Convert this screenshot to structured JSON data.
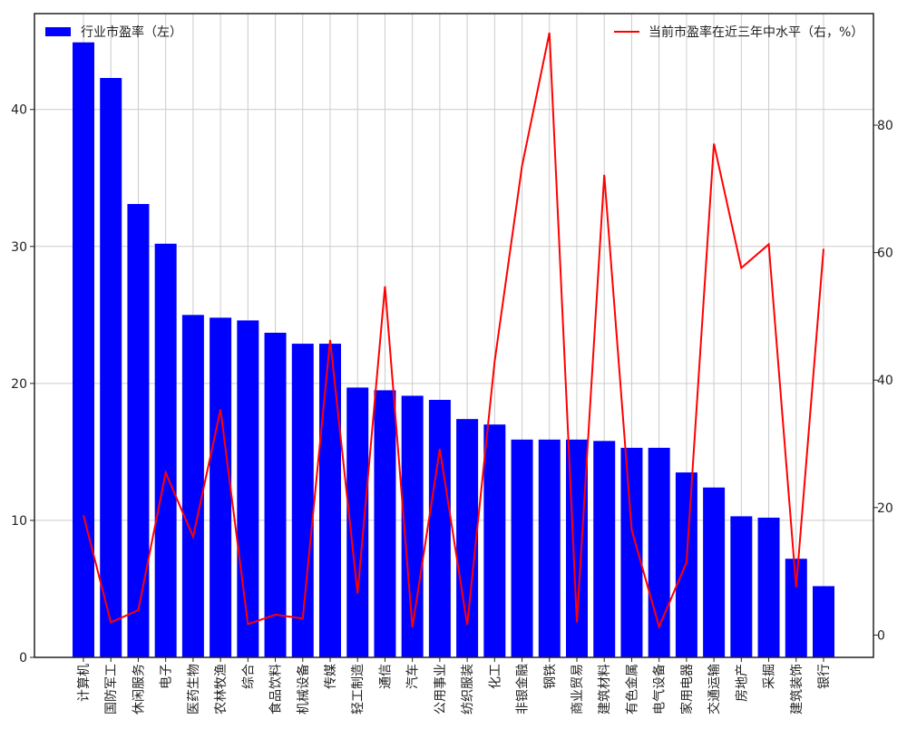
{
  "chart_data": {
    "type": "bar",
    "categories": [
      "计算机",
      "国防军工",
      "休闲服务",
      "电子",
      "医药生物",
      "农林牧渔",
      "综合",
      "食品饮料",
      "机械设备",
      "传媒",
      "轻工制造",
      "通信",
      "汽车",
      "公用事业",
      "纺织服装",
      "化工",
      "非银金融",
      "钢铁",
      "商业贸易",
      "建筑材料",
      "有色金属",
      "电气设备",
      "家用电器",
      "交通运输",
      "房地产",
      "采掘",
      "建筑装饰",
      "银行"
    ],
    "series": [
      {
        "name": "行业市盈率（左）",
        "type": "bar",
        "axis": "left",
        "color": "#0000ff",
        "values": [
          44.9,
          42.3,
          33.1,
          30.2,
          25.0,
          24.8,
          24.6,
          23.7,
          22.9,
          22.9,
          19.7,
          19.5,
          19.1,
          18.8,
          17.4,
          17.0,
          15.9,
          15.9,
          15.9,
          15.8,
          15.3,
          15.3,
          13.5,
          12.4,
          10.3,
          10.2,
          7.2,
          5.2
        ]
      },
      {
        "name": "当前市盈率在近三年中水平（右，%）",
        "type": "line",
        "axis": "right",
        "color": "#ff0000",
        "values": [
          18.8,
          2.0,
          3.9,
          25.5,
          15.4,
          35.4,
          1.7,
          3.2,
          2.6,
          46.3,
          6.5,
          54.7,
          1.2,
          29.2,
          1.6,
          42.9,
          73.6,
          94.5,
          2.0,
          72.2,
          16.5,
          1.3,
          11.4,
          77.1,
          57.6,
          61.3,
          7.5,
          60.6
        ]
      }
    ],
    "y_left": {
      "ylim": [
        0,
        47.0
      ],
      "ticks": [
        0,
        10,
        20,
        30,
        40
      ]
    },
    "y_right": {
      "ylim": [
        -3.5,
        97.5
      ],
      "ticks": [
        0,
        20,
        40,
        60,
        80
      ]
    },
    "grid": true,
    "legend_left_placement": "top-left",
    "legend_right_placement": "top-right"
  }
}
